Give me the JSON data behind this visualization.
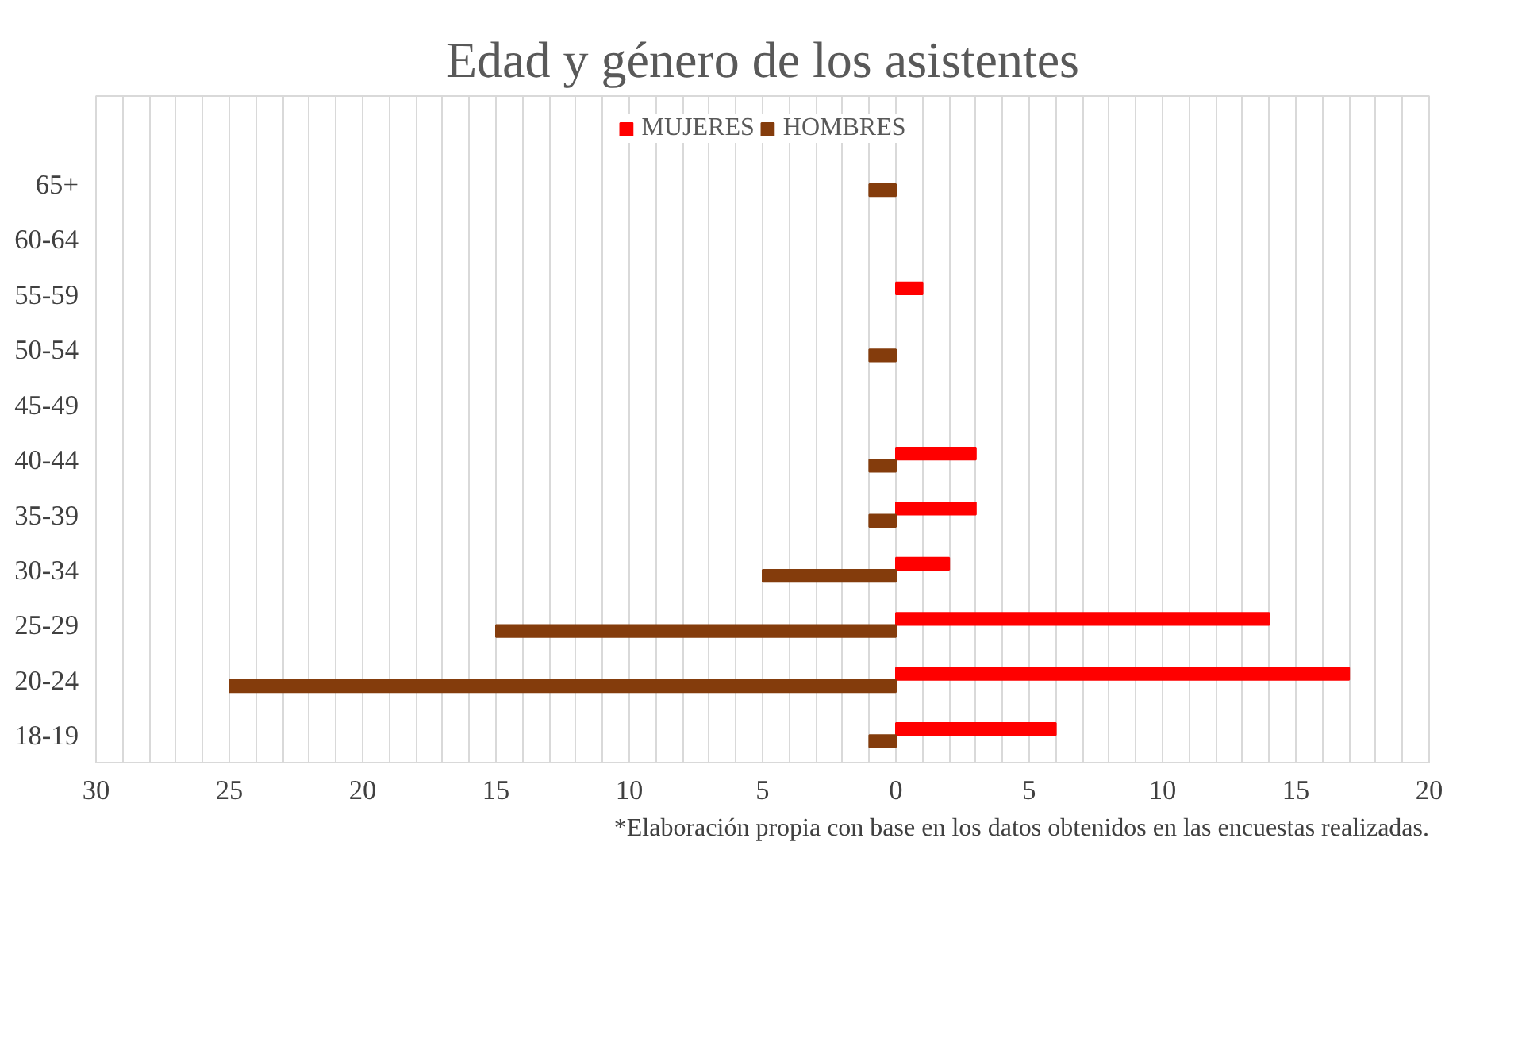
{
  "chart_data": {
    "type": "bar",
    "orientation": "horizontal",
    "title": "Edad y género de los asistentes",
    "categories": [
      "65+",
      "60-64",
      "55-59",
      "50-54",
      "45-49",
      "40-44",
      "35-39",
      "30-34",
      "25-29",
      "20-24",
      "18-19"
    ],
    "series": [
      {
        "name": "MUJERES",
        "color": "#ff0000",
        "values": [
          null,
          null,
          1,
          null,
          null,
          3,
          3,
          2,
          14,
          17,
          6
        ]
      },
      {
        "name": "HOMBRES",
        "color": "#843c0c",
        "values": [
          -1,
          null,
          null,
          -1,
          null,
          -1,
          -1,
          -5,
          -15,
          -25,
          -1
        ]
      }
    ],
    "xlim": [
      -30,
      20
    ],
    "xticks": [
      {
        "value": -30,
        "label": "30"
      },
      {
        "value": -29,
        "label": null
      },
      {
        "value": -28,
        "label": null
      },
      {
        "value": -27,
        "label": null
      },
      {
        "value": -26,
        "label": null
      },
      {
        "value": -25,
        "label": "25"
      },
      {
        "value": -24,
        "label": null
      },
      {
        "value": -23,
        "label": null
      },
      {
        "value": -22,
        "label": null
      },
      {
        "value": -21,
        "label": null
      },
      {
        "value": -20,
        "label": "20"
      },
      {
        "value": -19,
        "label": null
      },
      {
        "value": -18,
        "label": null
      },
      {
        "value": -17,
        "label": null
      },
      {
        "value": -16,
        "label": null
      },
      {
        "value": -15,
        "label": "15"
      },
      {
        "value": -14,
        "label": null
      },
      {
        "value": -13,
        "label": null
      },
      {
        "value": -12,
        "label": null
      },
      {
        "value": -11,
        "label": null
      },
      {
        "value": -10,
        "label": "10"
      },
      {
        "value": -9,
        "label": null
      },
      {
        "value": -8,
        "label": null
      },
      {
        "value": -7,
        "label": null
      },
      {
        "value": -6,
        "label": null
      },
      {
        "value": -5,
        "label": "5"
      },
      {
        "value": -4,
        "label": null
      },
      {
        "value": -3,
        "label": null
      },
      {
        "value": -2,
        "label": null
      },
      {
        "value": -1,
        "label": null
      },
      0,
      {
        "value": 1,
        "label": null
      },
      {
        "value": 2,
        "label": null
      },
      {
        "value": 3,
        "label": null
      },
      {
        "value": 4,
        "label": null
      },
      5,
      {
        "value": 6,
        "label": null
      },
      {
        "value": 7,
        "label": null
      },
      {
        "value": 8,
        "label": null
      },
      {
        "value": 9,
        "label": null
      },
      10,
      {
        "value": 11,
        "label": null
      },
      {
        "value": 12,
        "label": null
      },
      {
        "value": 13,
        "label": null
      },
      {
        "value": 14,
        "label": null
      },
      15,
      {
        "value": 16,
        "label": null
      },
      {
        "value": 17,
        "label": null
      },
      {
        "value": 18,
        "label": null
      },
      {
        "value": 19,
        "label": null
      },
      20
    ],
    "grid": "x",
    "legend": "top",
    "annotations": [
      "*Elaboración propia con base en los datos obtenidos en las encuestas realizadas."
    ]
  }
}
